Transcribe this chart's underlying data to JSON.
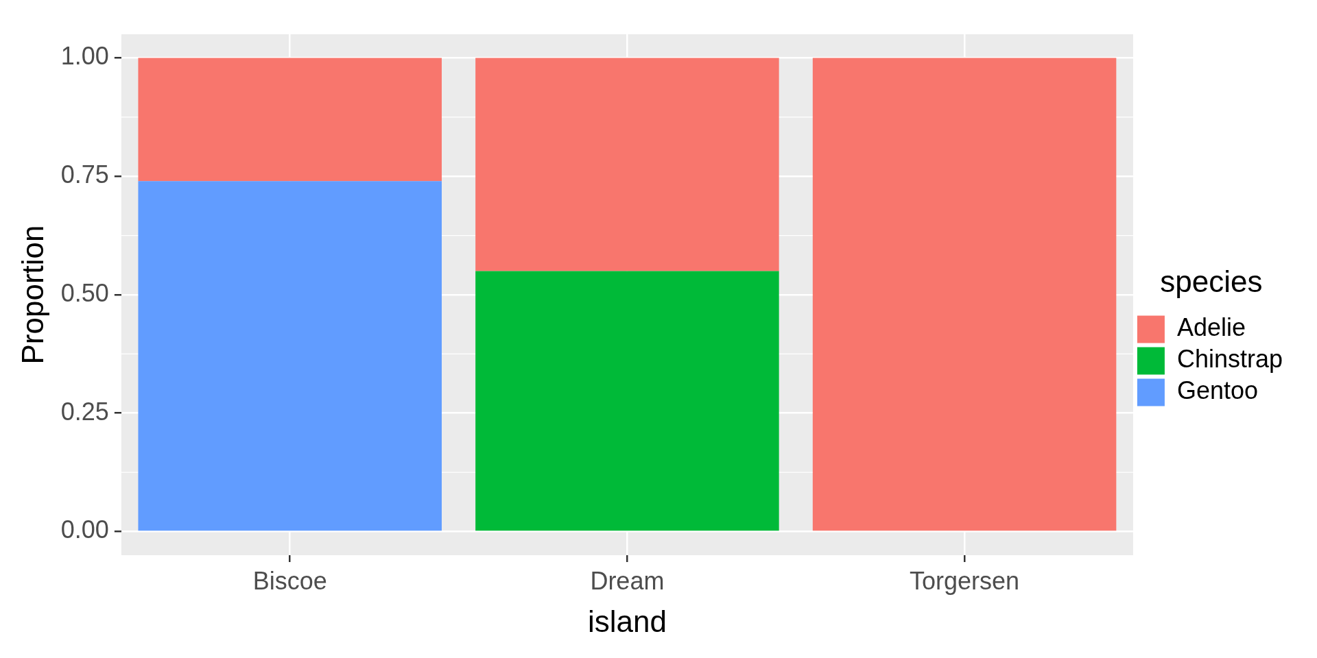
{
  "chart_data": {
    "type": "bar",
    "xlabel": "island",
    "ylabel": "Proportion",
    "legend_title": "species",
    "categories": [
      "Biscoe",
      "Dream",
      "Torgersen"
    ],
    "series": [
      {
        "name": "Gentoo",
        "color": "#619cff",
        "values": [
          0.74,
          null,
          null
        ]
      },
      {
        "name": "Chinstrap",
        "color": "#00ba38",
        "values": [
          null,
          0.55,
          null
        ]
      },
      {
        "name": "Adelie",
        "color": "#f8766d",
        "values": [
          0.26,
          0.45,
          1.0
        ]
      }
    ],
    "stacked": true,
    "ylim": [
      -0.05,
      1.05
    ],
    "yticks": [
      {
        "value": 0,
        "label": "0.00"
      },
      {
        "value": 0.25,
        "label": "0.25"
      },
      {
        "value": 0.5,
        "label": "0.50"
      },
      {
        "value": 0.75,
        "label": "0.75"
      },
      {
        "value": 1,
        "label": "1.00"
      }
    ],
    "grid": true,
    "legend": "right"
  }
}
